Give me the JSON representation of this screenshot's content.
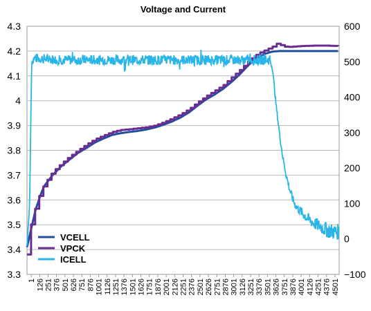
{
  "chart_data": {
    "type": "line",
    "title": "Voltage and Current",
    "xlabel": "",
    "ylabel": "",
    "y2label": "",
    "x_range": [
      1,
      4576
    ],
    "x_tick_labels": [
      "1",
      "126",
      "251",
      "376",
      "501",
      "626",
      "751",
      "876",
      "1001",
      "1126",
      "1251",
      "1376",
      "1501",
      "1626",
      "1751",
      "1876",
      "2001",
      "2126",
      "2251",
      "2376",
      "2501",
      "2626",
      "2751",
      "2876",
      "3001",
      "3126",
      "3251",
      "3376",
      "3501",
      "3626",
      "3751",
      "3876",
      "4001",
      "4126",
      "4251",
      "4376",
      "4501"
    ],
    "ylim_left": [
      3.3,
      4.3
    ],
    "yticks_left": [
      "3.3",
      "3.4",
      "3.5",
      "3.6",
      "3.7",
      "3.8",
      "3.9",
      "4",
      "4.1",
      "4.2",
      "4.3"
    ],
    "ylim_right": [
      -100,
      600
    ],
    "yticks_right": [
      "−100",
      "0",
      "100",
      "200",
      "300",
      "400",
      "500",
      "600"
    ],
    "grid": true,
    "legend_position": "bottom-left",
    "series": [
      {
        "name": "VCELL",
        "axis": "left",
        "color": "#1f4e9c",
        "points": [
          [
            1,
            3.41
          ],
          [
            60,
            3.48
          ],
          [
            126,
            3.56
          ],
          [
            200,
            3.62
          ],
          [
            251,
            3.655
          ],
          [
            376,
            3.7
          ],
          [
            501,
            3.735
          ],
          [
            626,
            3.763
          ],
          [
            751,
            3.79
          ],
          [
            876,
            3.81
          ],
          [
            1001,
            3.832
          ],
          [
            1126,
            3.848
          ],
          [
            1251,
            3.862
          ],
          [
            1376,
            3.869
          ],
          [
            1501,
            3.874
          ],
          [
            1626,
            3.878
          ],
          [
            1751,
            3.884
          ],
          [
            1876,
            3.892
          ],
          [
            2001,
            3.903
          ],
          [
            2126,
            3.916
          ],
          [
            2251,
            3.932
          ],
          [
            2376,
            3.953
          ],
          [
            2501,
            3.98
          ],
          [
            2626,
            4.005
          ],
          [
            2751,
            4.025
          ],
          [
            2876,
            4.048
          ],
          [
            3001,
            4.076
          ],
          [
            3126,
            4.108
          ],
          [
            3251,
            4.145
          ],
          [
            3376,
            4.172
          ],
          [
            3501,
            4.19
          ],
          [
            3600,
            4.198
          ],
          [
            3700,
            4.2
          ],
          [
            4576,
            4.2
          ]
        ]
      },
      {
        "name": "VPCK",
        "axis": "left",
        "color": "#6a2c91",
        "points": [
          [
            1,
            3.38
          ],
          [
            60,
            3.5
          ],
          [
            126,
            3.57
          ],
          [
            200,
            3.632
          ],
          [
            251,
            3.66
          ],
          [
            376,
            3.712
          ],
          [
            501,
            3.745
          ],
          [
            626,
            3.775
          ],
          [
            751,
            3.8
          ],
          [
            876,
            3.824
          ],
          [
            1001,
            3.845
          ],
          [
            1126,
            3.86
          ],
          [
            1251,
            3.874
          ],
          [
            1376,
            3.882
          ],
          [
            1501,
            3.885
          ],
          [
            1626,
            3.889
          ],
          [
            1751,
            3.893
          ],
          [
            1876,
            3.9
          ],
          [
            2001,
            3.913
          ],
          [
            2126,
            3.928
          ],
          [
            2251,
            3.945
          ],
          [
            2376,
            3.966
          ],
          [
            2501,
            3.993
          ],
          [
            2626,
            4.018
          ],
          [
            2751,
            4.04
          ],
          [
            2876,
            4.062
          ],
          [
            3001,
            4.094
          ],
          [
            3126,
            4.125
          ],
          [
            3251,
            4.16
          ],
          [
            3376,
            4.188
          ],
          [
            3501,
            4.205
          ],
          [
            3600,
            4.218
          ],
          [
            3660,
            4.23
          ],
          [
            3800,
            4.216
          ],
          [
            4000,
            4.22
          ],
          [
            4200,
            4.222
          ],
          [
            4400,
            4.222
          ],
          [
            4576,
            4.22
          ]
        ]
      },
      {
        "name": "ICELL",
        "axis": "right",
        "color": "#29b5e8",
        "points": [
          [
            1,
            -20
          ],
          [
            40,
            100
          ],
          [
            70,
            500
          ],
          [
            100,
            510
          ],
          [
            500,
            505
          ],
          [
            1000,
            505
          ],
          [
            1500,
            505
          ],
          [
            2000,
            505
          ],
          [
            2500,
            505
          ],
          [
            3000,
            505
          ],
          [
            3500,
            505
          ],
          [
            3560,
            505
          ],
          [
            3600,
            480
          ],
          [
            3650,
            380
          ],
          [
            3700,
            300
          ],
          [
            3750,
            230
          ],
          [
            3800,
            180
          ],
          [
            3850,
            140
          ],
          [
            3900,
            110
          ],
          [
            3950,
            90
          ],
          [
            4000,
            80
          ],
          [
            4100,
            60
          ],
          [
            4200,
            45
          ],
          [
            4300,
            35
          ],
          [
            4400,
            25
          ],
          [
            4500,
            20
          ],
          [
            4576,
            20
          ]
        ]
      }
    ]
  }
}
